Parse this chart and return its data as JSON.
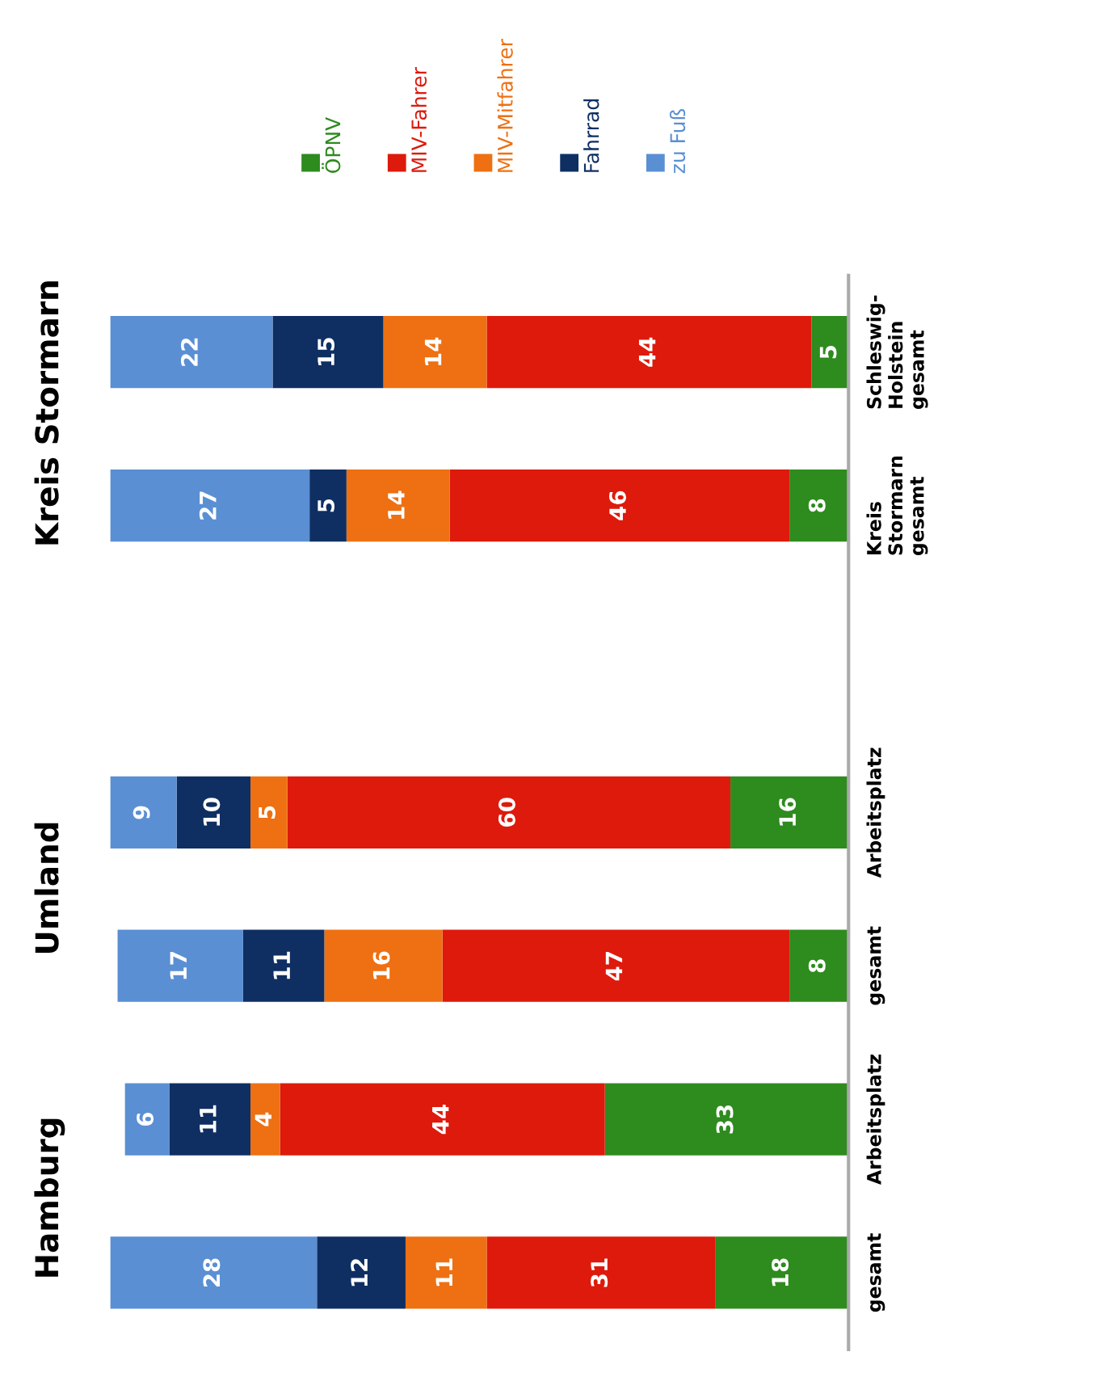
{
  "chart_data": {
    "type": "bar",
    "orientation": "horizontal",
    "stacked": true,
    "data_labels": true,
    "grid": false,
    "legend": "top",
    "categories": [
      "Schleswig-Holstein gesamt",
      "Kreis Stormarn gesamt",
      null,
      "Arbeitsplatz",
      "gesamt",
      "Arbeitsplatz",
      "gesamt"
    ],
    "series": [
      {
        "name": "ÖPNV",
        "color": "#2e8b1e",
        "values": [
          5,
          8,
          null,
          16,
          8,
          33,
          18
        ]
      },
      {
        "name": "MIV-Fahrer",
        "color": "#dd1a0c",
        "values": [
          44,
          46,
          null,
          60,
          47,
          44,
          31
        ]
      },
      {
        "name": "MIV-Mitfahrer",
        "color": "#ee7012",
        "values": [
          14,
          14,
          null,
          5,
          16,
          4,
          11
        ]
      },
      {
        "name": "Fahrrad",
        "color": "#0f2f63",
        "values": [
          15,
          5,
          null,
          10,
          11,
          11,
          12
        ]
      },
      {
        "name": "zu Fuß",
        "color": "#5a8fd3",
        "values": [
          22,
          27,
          null,
          9,
          17,
          6,
          28
        ]
      }
    ],
    "annotations": [
      "Kreis Stormarn",
      "Umland",
      "Hamburg"
    ]
  }
}
